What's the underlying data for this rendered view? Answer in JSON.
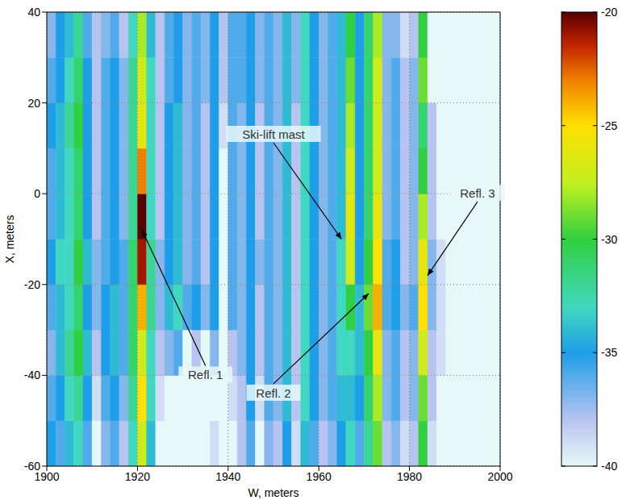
{
  "chart_data": {
    "type": "heatmap",
    "x_label": "W, meters",
    "y_label": "X, meters",
    "xlim": [
      1900,
      2000
    ],
    "xticks": [
      1900,
      1920,
      1940,
      1960,
      1980,
      2000
    ],
    "ylim": [
      -60,
      40
    ],
    "yticks": [
      -60,
      -40,
      -20,
      0,
      20,
      40
    ],
    "grid": true,
    "colorbar": {
      "range": [
        -40,
        -20
      ],
      "ticks": [
        -40,
        -35,
        -30,
        -25,
        -20
      ]
    },
    "cells": {
      "x": [
        1901,
        1903,
        1905,
        1907,
        1909,
        1911,
        1913,
        1915,
        1917,
        1919,
        1921,
        1923,
        1925,
        1927,
        1929,
        1931,
        1933,
        1935,
        1937,
        1939,
        1941,
        1943,
        1945,
        1947,
        1949,
        1951,
        1953,
        1955,
        1957,
        1959,
        1961,
        1963,
        1965,
        1967,
        1969,
        1971,
        1973,
        1975,
        1977,
        1979,
        1981,
        1983,
        1985,
        1987,
        1989,
        1991,
        1993,
        1995,
        1997,
        1999
      ],
      "y": [
        -55,
        -45,
        -35,
        -25,
        -15,
        -5,
        5,
        15,
        25,
        35
      ],
      "z": [
        [
          -35,
          -36,
          -34,
          -33,
          -36,
          -40,
          -37,
          -36,
          -38,
          -33,
          -27,
          -34,
          -40,
          -40,
          -40,
          -40,
          -40,
          -40,
          -39,
          -40,
          -40,
          -38,
          -36,
          -40,
          -37,
          -38,
          -35,
          -39,
          -34,
          -36,
          -38,
          -37,
          -35,
          -33,
          -36,
          -32,
          -29,
          -38,
          -37,
          -39,
          -38,
          -30,
          -39,
          -40,
          -40,
          -40,
          -40,
          -40,
          -40,
          -40
        ],
        [
          -36,
          -35,
          -33,
          -32,
          -35,
          -39,
          -36,
          -35,
          -37,
          -32,
          -25,
          -33,
          -39,
          -40,
          -40,
          -40,
          -40,
          -40,
          -40,
          -40,
          -39,
          -38,
          -35,
          -39,
          -36,
          -37,
          -34,
          -38,
          -33,
          -35,
          -37,
          -36,
          -34,
          -34,
          -35,
          -31,
          -28,
          -37,
          -36,
          -38,
          -37,
          -29,
          -38,
          -40,
          -40,
          -40,
          -40,
          -40,
          -40,
          -40
        ],
        [
          -37,
          -34,
          -32,
          -30,
          -34,
          -38,
          -35,
          -34,
          -36,
          -31,
          -27,
          -33,
          -38,
          -37,
          -36,
          -40,
          -38,
          -40,
          -37,
          -40,
          -38,
          -37,
          -35,
          -38,
          -36,
          -37,
          -34,
          -38,
          -33,
          -35,
          -37,
          -36,
          -33,
          -33,
          -34,
          -30,
          -26,
          -37,
          -36,
          -38,
          -37,
          -27,
          -38,
          -39,
          -40,
          -40,
          -40,
          -40,
          -40,
          -40
        ],
        [
          -36,
          -34,
          -33,
          -31,
          -35,
          -37,
          -35,
          -34,
          -36,
          -31,
          -24,
          -32,
          -37,
          -34,
          -33,
          -36,
          -35,
          -37,
          -35,
          -40,
          -36,
          -37,
          -35,
          -38,
          -36,
          -37,
          -34,
          -38,
          -33,
          -35,
          -37,
          -36,
          -33,
          -30,
          -34,
          -29,
          -24,
          -36,
          -35,
          -37,
          -36,
          -25,
          -37,
          -39,
          -40,
          -40,
          -40,
          -40,
          -40,
          -40
        ],
        [
          -35,
          -33,
          -33,
          -30,
          -34,
          -37,
          -36,
          -35,
          -36,
          -31,
          -21,
          -32,
          -37,
          -35,
          -34,
          -37,
          -36,
          -38,
          -35,
          -40,
          -36,
          -37,
          -35,
          -37,
          -36,
          -37,
          -34,
          -38,
          -33,
          -35,
          -37,
          -36,
          -33,
          -27,
          -35,
          -30,
          -25,
          -36,
          -35,
          -38,
          -37,
          -26,
          -37,
          -39,
          -40,
          -40,
          -40,
          -40,
          -40,
          -40
        ],
        [
          -36,
          -34,
          -33,
          -31,
          -35,
          -38,
          -36,
          -35,
          -37,
          -32,
          -20,
          -33,
          -38,
          -35,
          -34,
          -37,
          -36,
          -38,
          -35,
          -40,
          -36,
          -37,
          -35,
          -38,
          -36,
          -37,
          -34,
          -38,
          -33,
          -35,
          -37,
          -36,
          -34,
          -26,
          -35,
          -31,
          -26,
          -37,
          -36,
          -38,
          -37,
          -28,
          -38,
          -40,
          -40,
          -40,
          -40,
          -40,
          -40,
          -40
        ],
        [
          -36,
          -34,
          -33,
          -31,
          -35,
          -38,
          -36,
          -35,
          -37,
          -32,
          -23,
          -33,
          -38,
          -35,
          -34,
          -37,
          -36,
          -38,
          -35,
          -40,
          -36,
          -37,
          -35,
          -38,
          -36,
          -37,
          -34,
          -38,
          -33,
          -35,
          -37,
          -36,
          -34,
          -27,
          -35,
          -31,
          -27,
          -37,
          -36,
          -38,
          -37,
          -30,
          -38,
          -40,
          -40,
          -40,
          -40,
          -40,
          -40,
          -40
        ],
        [
          -35,
          -34,
          -32,
          -30,
          -35,
          -38,
          -36,
          -35,
          -37,
          -32,
          -26,
          -33,
          -38,
          -35,
          -34,
          -37,
          -36,
          -38,
          -35,
          -39,
          -36,
          -37,
          -35,
          -38,
          -36,
          -37,
          -34,
          -38,
          -33,
          -35,
          -37,
          -36,
          -34,
          -28,
          -35,
          -31,
          -27,
          -37,
          -36,
          -38,
          -37,
          -31,
          -38,
          -40,
          -40,
          -40,
          -40,
          -40,
          -40,
          -40
        ],
        [
          -36,
          -35,
          -33,
          -31,
          -35,
          -38,
          -36,
          -35,
          -37,
          -32,
          -27,
          -33,
          -38,
          -36,
          -35,
          -37,
          -36,
          -37,
          -35,
          -38,
          -36,
          -36,
          -35,
          -37,
          -36,
          -37,
          -34,
          -37,
          -33,
          -35,
          -37,
          -36,
          -34,
          -29,
          -35,
          -31,
          -27,
          -37,
          -36,
          -38,
          -37,
          -29,
          -40,
          -40,
          -40,
          -40,
          -40,
          -40,
          -40,
          -40
        ],
        [
          -37,
          -35,
          -34,
          -32,
          -36,
          -38,
          -37,
          -36,
          -38,
          -33,
          -28,
          -34,
          -38,
          -36,
          -35,
          -37,
          -36,
          -37,
          -35,
          -38,
          -36,
          -36,
          -35,
          -37,
          -36,
          -37,
          -34,
          -37,
          -33,
          -35,
          -37,
          -36,
          -34,
          -30,
          -35,
          -31,
          -28,
          -37,
          -37,
          -39,
          -38,
          -30,
          -40,
          -40,
          -40,
          -40,
          -40,
          -40,
          -40,
          -40
        ]
      ]
    },
    "annotations": [
      {
        "text": "Ski-lift mast",
        "x": 1950,
        "y": 13,
        "arrow_x": 1965,
        "arrow_y": -10
      },
      {
        "text": "Refl. 1",
        "x": 1935,
        "y": -40,
        "arrow_x": 1921,
        "arrow_y": -8
      },
      {
        "text": "Refl. 2",
        "x": 1950,
        "y": -44,
        "arrow_x": 1971,
        "arrow_y": -22
      },
      {
        "text": "Refl. 3",
        "x": 1995,
        "y": 0,
        "arrow_x": 1984,
        "arrow_y": -18
      }
    ]
  }
}
